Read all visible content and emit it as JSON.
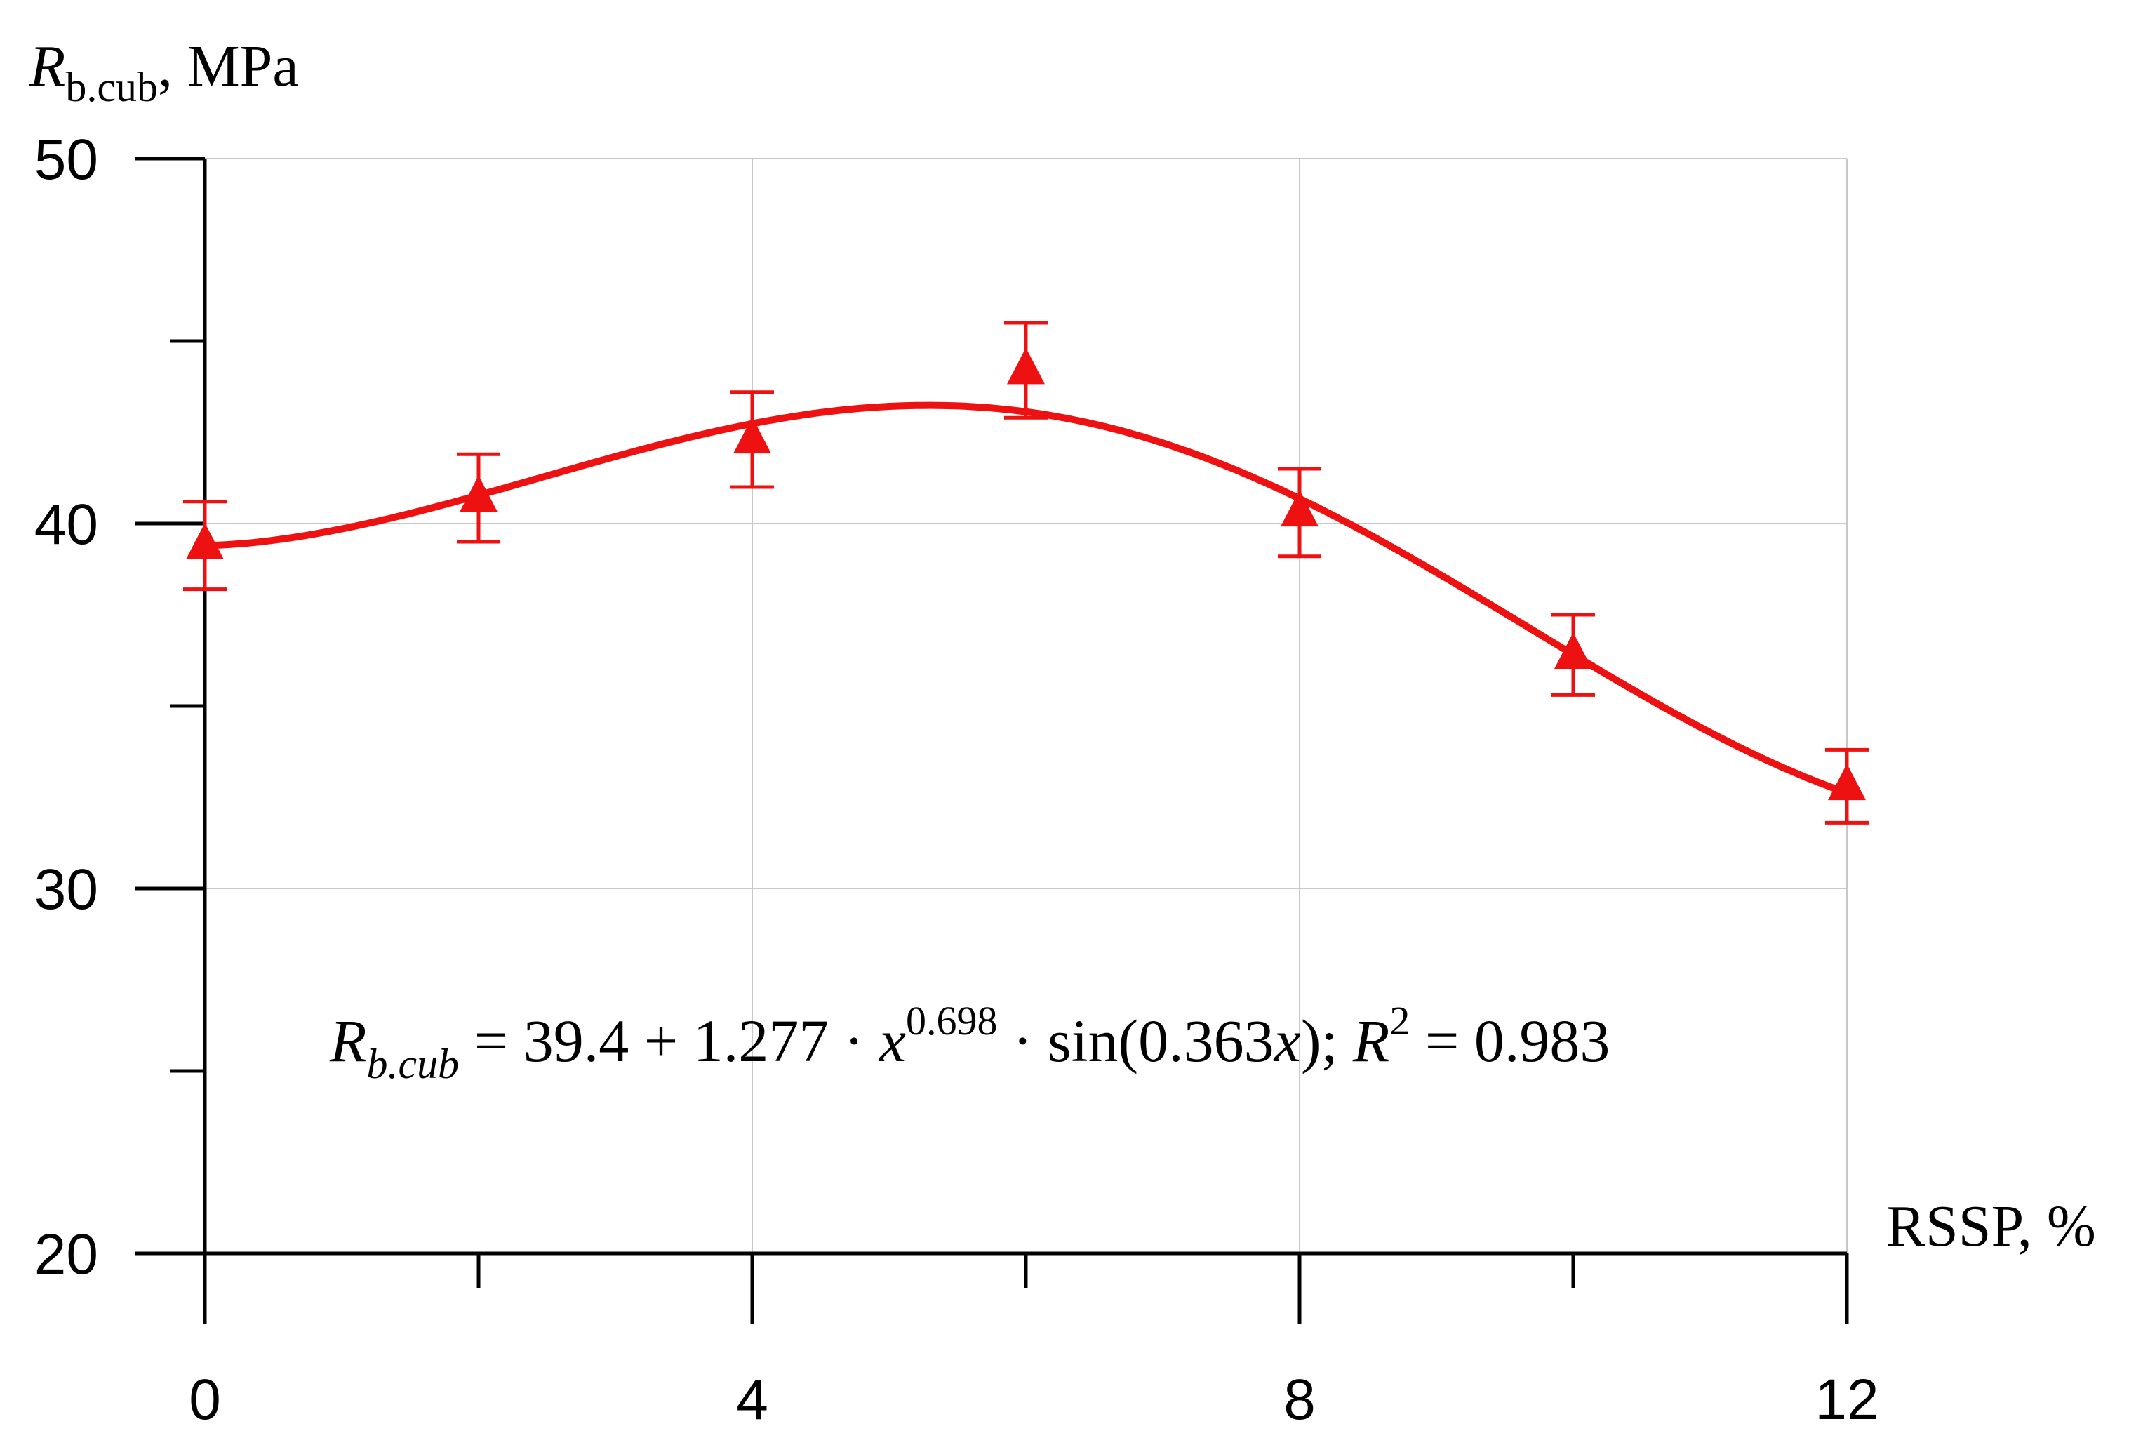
{
  "chart_data": {
    "type": "scatter",
    "x_axis": {
      "label": "RSSP, %",
      "range": [
        0,
        12
      ],
      "ticks": [
        0,
        4,
        8,
        12
      ],
      "minor_ticks": [
        2,
        6,
        10
      ]
    },
    "y_axis": {
      "label_main": "R",
      "label_sub": "b.cub",
      "label_suffix": ", MPa",
      "range": [
        20,
        50
      ],
      "ticks": [
        20,
        30,
        40,
        50
      ],
      "minor_ticks": [
        25,
        35,
        45
      ]
    },
    "grid": true,
    "series": [
      {
        "marker": "triangle",
        "color": "#ee1111",
        "points": [
          {
            "x": 0,
            "y": 39.4,
            "err": 1.2
          },
          {
            "x": 2,
            "y": 40.7,
            "err": 1.2
          },
          {
            "x": 4,
            "y": 42.3,
            "err": 1.3
          },
          {
            "x": 6,
            "y": 44.2,
            "err": 1.3
          },
          {
            "x": 8,
            "y": 40.3,
            "err": 1.2
          },
          {
            "x": 10,
            "y": 36.4,
            "err": 1.1
          },
          {
            "x": 12,
            "y": 32.8,
            "err": 1.0
          }
        ]
      }
    ],
    "fit": {
      "a": 39.4,
      "b": 1.277,
      "p": 0.698,
      "k": 0.363,
      "r2": 0.983,
      "color": "#ee1111"
    },
    "equation": {
      "lhs": "R",
      "lhs_sub": "b.cub",
      "rhs_1": " = 39.4 + 1.277 · ",
      "var": "x",
      "exp": "0.698",
      "rhs_2": " · sin(0.363",
      "var2": "x",
      "rhs_3": ");  ",
      "r": "R",
      "r_exp": "2",
      "r_rhs": " = 0.983"
    }
  }
}
